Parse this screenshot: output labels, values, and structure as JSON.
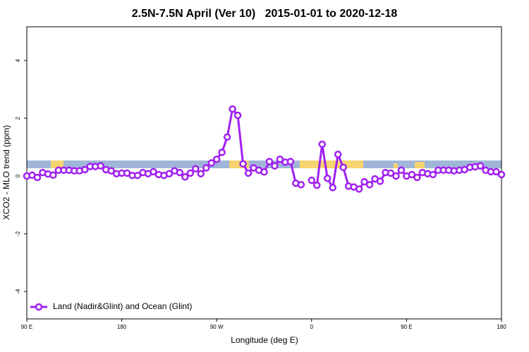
{
  "chart_data": {
    "type": "line",
    "title": "2.5N-7.5N April (Ver 10)   2015-01-01 to 2020-12-18",
    "xlabel": "Longitude (deg E)",
    "ylabel": "XCO2 - MLO trend (ppm)",
    "xlim": [
      90,
      540
    ],
    "ylim": [
      -4.95,
      5.17
    ],
    "xticks": [
      {
        "value": 90,
        "label": "90 E"
      },
      180,
      {
        "value": 270,
        "label": "90 W"
      },
      {
        "value": 360,
        "label": "0"
      },
      {
        "value": 450,
        "label": "90 E"
      },
      {
        "value": 540,
        "label": "180"
      }
    ],
    "yticks": [
      -4,
      -2,
      0,
      2,
      4
    ],
    "legend": "bottom-left",
    "x": [
      90,
      95,
      100,
      105,
      110,
      115,
      120,
      125,
      130,
      135,
      140,
      145,
      150,
      155,
      160,
      165,
      170,
      175,
      180,
      185,
      190,
      195,
      200,
      205,
      210,
      215,
      220,
      225,
      230,
      235,
      240,
      245,
      250,
      255,
      260,
      265,
      270,
      275,
      280,
      285,
      290,
      295,
      300,
      305,
      310,
      315,
      320,
      325,
      330,
      335,
      340,
      345,
      350,
      355,
      360,
      365,
      370,
      375,
      380,
      385,
      390,
      395,
      400,
      405,
      410,
      415,
      420,
      425,
      430,
      435,
      440,
      445,
      450,
      455,
      460,
      465,
      470,
      475,
      480,
      485,
      490,
      495,
      500,
      505,
      510,
      515,
      520,
      525,
      530,
      535,
      540
    ],
    "series": [
      {
        "name": "Land (Nadir&Glint) and Ocean (Glint)",
        "color": "#a020f0",
        "values": [
          0.0,
          0.03,
          -0.05,
          0.12,
          0.07,
          0.03,
          0.2,
          0.2,
          0.2,
          0.18,
          0.18,
          0.22,
          0.33,
          0.33,
          0.35,
          0.22,
          0.18,
          0.08,
          0.1,
          0.1,
          0.02,
          0.02,
          0.12,
          0.08,
          0.15,
          0.05,
          0.02,
          0.08,
          0.18,
          0.12,
          -0.03,
          0.1,
          0.25,
          0.08,
          0.28,
          0.45,
          0.58,
          0.82,
          1.35,
          2.32,
          2.1,
          0.42,
          0.1,
          0.28,
          0.2,
          0.14,
          0.5,
          0.35,
          0.58,
          0.48,
          0.5,
          -0.25,
          -0.3,
          null,
          -0.15,
          -0.32,
          1.1,
          -0.08,
          -0.4,
          0.75,
          0.3,
          -0.35,
          -0.38,
          -0.45,
          -0.2,
          -0.3,
          -0.1,
          -0.18,
          0.12,
          0.1,
          0.0,
          0.2,
          0.0,
          0.05,
          -0.05,
          0.12,
          0.08,
          0.05,
          0.2,
          0.2,
          0.2,
          0.18,
          0.2,
          0.22,
          0.3,
          0.32,
          0.35,
          0.2,
          0.15,
          0.15,
          0.05
        ]
      }
    ]
  }
}
